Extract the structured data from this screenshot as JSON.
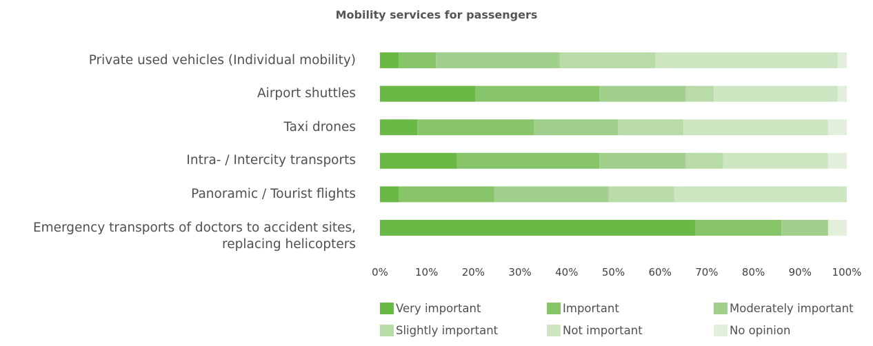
{
  "chart_data": {
    "type": "bar",
    "orientation": "horizontal",
    "stacked": true,
    "title": "Mobility services for passengers",
    "categories": [
      "Private used vehicles (Individual mobility)",
      "Airport shuttles",
      "Taxi drones",
      "Intra- / Intercity transports",
      "Panoramic / Tourist flights",
      "Emergency transports of doctors to accident sites, replacing helicopters"
    ],
    "category_lines": [
      [
        "Private used vehicles (Individual mobility)"
      ],
      [
        "Airport shuttles"
      ],
      [
        "Taxi drones"
      ],
      [
        "Intra- / Intercity transports"
      ],
      [
        "Panoramic / Tourist flights"
      ],
      [
        "Emergency transports of doctors to accident sites,",
        "replacing helicopters"
      ]
    ],
    "series": [
      {
        "name": "Very important",
        "color": "#6ab846",
        "values": [
          4,
          20.5,
          8,
          16.5,
          4,
          67.5
        ]
      },
      {
        "name": "Important",
        "color": "#88c46a",
        "values": [
          8,
          26.5,
          25,
          30.5,
          20.5,
          18.5
        ]
      },
      {
        "name": "Moderately important",
        "color": "#a0d08c",
        "values": [
          26.5,
          18.5,
          18,
          18.5,
          24.5,
          10
        ]
      },
      {
        "name": "Slightly important",
        "color": "#b8dba8",
        "values": [
          20.5,
          6,
          14,
          8,
          14,
          0
        ]
      },
      {
        "name": "Not important",
        "color": "#cde6c1",
        "values": [
          39,
          26.5,
          31,
          22.5,
          37,
          0
        ]
      },
      {
        "name": "No opinion",
        "color": "#e2f0db",
        "values": [
          2,
          2,
          4,
          4,
          0,
          4
        ]
      }
    ],
    "x_ticks": [
      "0%",
      "10%",
      "20%",
      "30%",
      "40%",
      "50%",
      "60%",
      "70%",
      "80%",
      "90%",
      "100%"
    ],
    "xlim": [
      0,
      100
    ],
    "grid": false,
    "legend_position": "bottom"
  }
}
